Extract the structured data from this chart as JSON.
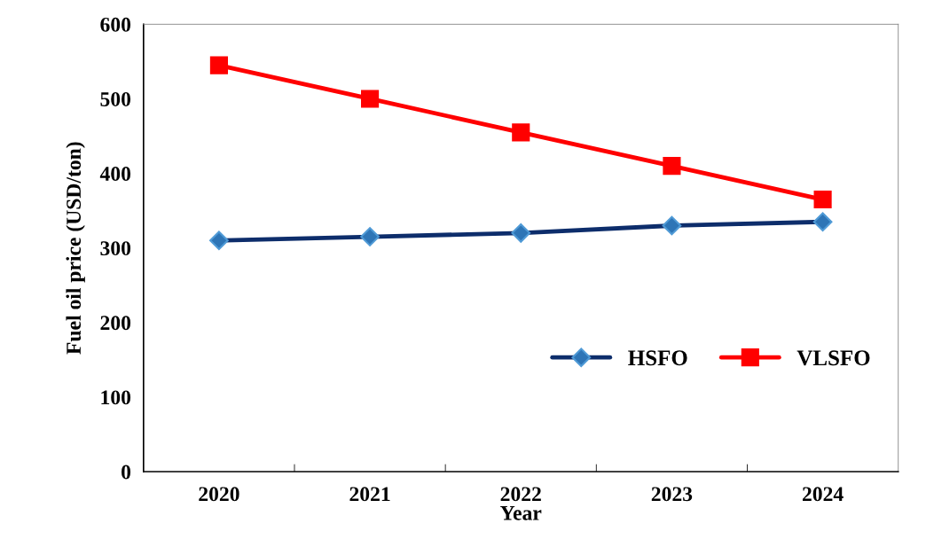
{
  "chart_data": {
    "type": "line",
    "xlabel": "Year",
    "ylabel": "Fuel oil price (USD/ton)",
    "categories": [
      "2020",
      "2021",
      "2022",
      "2023",
      "2024"
    ],
    "series": [
      {
        "name": "HSFO",
        "color": "#0d2d6b",
        "marker": "diamond",
        "values": [
          310,
          315,
          320,
          330,
          335
        ]
      },
      {
        "name": "VLSFO",
        "color": "#ff0000",
        "marker": "square",
        "values": [
          545,
          500,
          455,
          410,
          365
        ]
      }
    ],
    "ylim": [
      0,
      600
    ],
    "yticks": [
      0,
      100,
      200,
      300,
      400,
      500,
      600
    ],
    "grid": false,
    "legend": "right"
  }
}
